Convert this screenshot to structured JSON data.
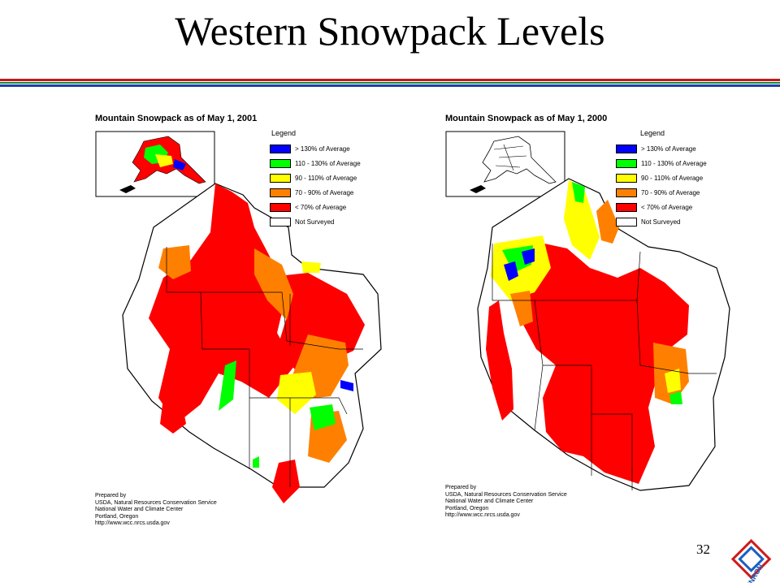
{
  "slide": {
    "title": "Western Snowpack Levels",
    "page_number": "32",
    "logo_text": "ENRON"
  },
  "legend": {
    "title": "Legend",
    "items": [
      {
        "label": "> 130% of Average",
        "color": "#0000ff"
      },
      {
        "label": "110 - 130% of Average",
        "color": "#00ff00"
      },
      {
        "label": "90 - 110% of Average",
        "color": "#ffff00"
      },
      {
        "label": "70 - 90% of Average",
        "color": "#ff8000"
      },
      {
        "label": "< 70% of Average",
        "color": "#ff0000"
      },
      {
        "label": "Not Surveyed",
        "color": "#ffffff"
      }
    ]
  },
  "maps": [
    {
      "title": "Mountain Snowpack as of May 1, 2001",
      "credits": [
        "Prepared by",
        "USDA, Natural Resources Conservation Service",
        "National Water and Climate Center",
        "Portland, Oregon",
        "http://www.wcc.nrcs.usda.gov"
      ]
    },
    {
      "title": "Mountain Snowpack as of May 1, 2000",
      "credits": [
        "Prepared by",
        "USDA, Natural Resources Conservation Service",
        "National Water and Climate Center",
        "Portland, Oregon",
        "http://www.wcc.nrcs.usda.gov"
      ]
    }
  ],
  "colors": {
    "rule_red": "#c0181c",
    "rule_green": "#128a3a",
    "rule_blue": "#1c3fa8",
    "logo_blue": "#1a5fc0",
    "logo_red": "#d01a1a"
  }
}
